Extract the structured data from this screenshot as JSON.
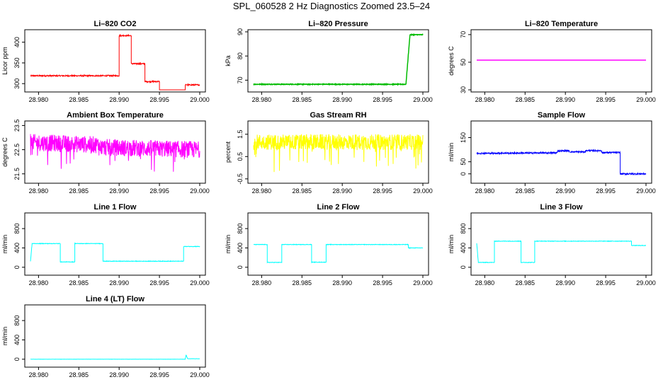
{
  "figure": {
    "title": "SPL_060528  2 Hz Diagnostics Zoomed 23.5–24"
  },
  "chart_data": [
    {
      "type": "line",
      "title": "Li–820 CO2",
      "ylabel": "Licor ppm",
      "color": "#ff0000",
      "xlim": [
        28.979,
        29.0
      ],
      "ylim": [
        285,
        425
      ],
      "xticks": [
        "28.980",
        "28.985",
        "28.990",
        "28.995",
        "29.000"
      ],
      "yticks": [
        "300",
        "350",
        "400"
      ],
      "noise": 1.5,
      "segments": [
        {
          "x": [
            28.979,
            28.99
          ],
          "y": [
            319,
            319
          ]
        },
        {
          "x": [
            28.99,
            28.9915
          ],
          "y": [
            416,
            416
          ]
        },
        {
          "x": [
            28.9915,
            28.9932
          ],
          "y": [
            348,
            348
          ]
        },
        {
          "x": [
            28.9932,
            28.995
          ],
          "y": [
            305,
            305
          ]
        },
        {
          "x": [
            28.995,
            28.9982
          ],
          "y": [
            283,
            283
          ]
        },
        {
          "x": [
            28.9982,
            29.0
          ],
          "y": [
            297,
            297
          ]
        }
      ]
    },
    {
      "type": "line",
      "title": "Li–820 Pressure",
      "ylabel": "kPa",
      "color": "#00bb00",
      "xlim": [
        28.979,
        29.0
      ],
      "ylim": [
        66,
        90
      ],
      "xticks": [
        "28.980",
        "28.985",
        "28.990",
        "28.995",
        "29.000"
      ],
      "yticks": [
        "70",
        "80",
        "90"
      ],
      "noise": 0.15,
      "segments": [
        {
          "x": [
            28.979,
            28.9979
          ],
          "y": [
            68.3,
            68.3
          ]
        },
        {
          "x": [
            28.9979,
            28.9984
          ],
          "y": [
            68.3,
            88.8
          ]
        },
        {
          "x": [
            28.9984,
            29.0
          ],
          "y": [
            88.8,
            88.8
          ]
        }
      ]
    },
    {
      "type": "line",
      "title": "Li–820 Temperature",
      "ylabel": "degrees C",
      "color": "#ff00ff",
      "xlim": [
        28.979,
        29.0
      ],
      "ylim": [
        30,
        72
      ],
      "xticks": [
        "28.980",
        "28.985",
        "28.990",
        "28.995",
        "29.000"
      ],
      "yticks": [
        "30",
        "50",
        "70"
      ],
      "noise": 0,
      "segments": [
        {
          "x": [
            28.979,
            29.0
          ],
          "y": [
            51.5,
            51.5
          ]
        }
      ]
    },
    {
      "type": "line",
      "title": "Ambient Box Temperature",
      "ylabel": "degrees C",
      "color": "#ff00ff",
      "xlim": [
        28.979,
        29.0
      ],
      "ylim": [
        21.2,
        23.6
      ],
      "xticks": [
        "28.980",
        "28.985",
        "28.990",
        "28.995",
        "29.000"
      ],
      "yticks": [
        "21.5",
        "22.5",
        "23.5"
      ],
      "noise": 0.35,
      "spikes": 0.05,
      "segments": [
        {
          "x": [
            28.979,
            28.9875
          ],
          "y": [
            22.8,
            22.7
          ]
        },
        {
          "x": [
            28.9875,
            29.0
          ],
          "y": [
            22.6,
            22.5
          ]
        }
      ]
    },
    {
      "type": "line",
      "title": "Gas Stream RH",
      "ylabel": "percent",
      "color": "#ffff00",
      "xlim": [
        28.979,
        29.0
      ],
      "ylim": [
        -0.6,
        2.0
      ],
      "xticks": [
        "28.980",
        "28.985",
        "28.990",
        "28.995",
        "29.000"
      ],
      "yticks": [
        "-0.5",
        "0.5",
        "1.5"
      ],
      "noise": 0.35,
      "spikes": 0.07,
      "segments": [
        {
          "x": [
            28.979,
            29.0
          ],
          "y": [
            1.15,
            1.15
          ]
        }
      ]
    },
    {
      "type": "line",
      "title": "Sample Flow",
      "ylabel": "ml/min",
      "color": "#0000ff",
      "xlim": [
        28.979,
        29.0
      ],
      "ylim": [
        -30,
        210
      ],
      "xticks": [
        "28.980",
        "28.985",
        "28.990",
        "28.995",
        "29.000"
      ],
      "yticks": [
        "0",
        "50",
        "150"
      ],
      "noise": 3,
      "segments": [
        {
          "x": [
            28.979,
            28.989
          ],
          "y": [
            85,
            87
          ]
        },
        {
          "x": [
            28.989,
            28.9905
          ],
          "y": [
            95,
            95
          ]
        },
        {
          "x": [
            28.9905,
            28.9925
          ],
          "y": [
            91,
            91
          ]
        },
        {
          "x": [
            28.9925,
            28.9945
          ],
          "y": [
            96,
            96
          ]
        },
        {
          "x": [
            28.9945,
            28.9968
          ],
          "y": [
            88,
            88
          ]
        },
        {
          "x": [
            28.9968,
            29.0
          ],
          "y": [
            0,
            0
          ]
        }
      ]
    },
    {
      "type": "line",
      "title": "Line 1 Flow",
      "ylabel": "ml/min",
      "color": "#00ffff",
      "xlim": [
        28.979,
        29.0
      ],
      "ylim": [
        -120,
        1080
      ],
      "xticks": [
        "28.980",
        "28.985",
        "28.990",
        "28.995",
        "29.000"
      ],
      "yticks": [
        "0",
        "400",
        "800"
      ],
      "noise": 5,
      "segments": [
        {
          "x": [
            28.979,
            28.9792
          ],
          "y": [
            120,
            490
          ]
        },
        {
          "x": [
            28.9792,
            28.9827
          ],
          "y": [
            490,
            490
          ]
        },
        {
          "x": [
            28.9827,
            28.9845
          ],
          "y": [
            110,
            110
          ]
        },
        {
          "x": [
            28.9845,
            28.988
          ],
          "y": [
            490,
            490
          ]
        },
        {
          "x": [
            28.988,
            28.998
          ],
          "y": [
            125,
            125
          ]
        },
        {
          "x": [
            28.998,
            29.0
          ],
          "y": [
            430,
            430
          ]
        }
      ]
    },
    {
      "type": "line",
      "title": "Line 2 Flow",
      "ylabel": "ml/min",
      "color": "#00ffff",
      "xlim": [
        28.979,
        29.0
      ],
      "ylim": [
        -120,
        1080
      ],
      "xticks": [
        "28.980",
        "28.985",
        "28.990",
        "28.995",
        "29.000"
      ],
      "yticks": [
        "0",
        "400",
        "800"
      ],
      "noise": 5,
      "segments": [
        {
          "x": [
            28.979,
            28.9807
          ],
          "y": [
            470,
            470
          ]
        },
        {
          "x": [
            28.9807,
            28.9825
          ],
          "y": [
            100,
            100
          ]
        },
        {
          "x": [
            28.9825,
            28.9862
          ],
          "y": [
            470,
            470
          ]
        },
        {
          "x": [
            28.9862,
            28.988
          ],
          "y": [
            105,
            105
          ]
        },
        {
          "x": [
            28.988,
            28.9982
          ],
          "y": [
            470,
            470
          ]
        },
        {
          "x": [
            28.9982,
            29.0
          ],
          "y": [
            400,
            400
          ]
        }
      ]
    },
    {
      "type": "line",
      "title": "Line 3 Flow",
      "ylabel": "ml/min",
      "color": "#00ffff",
      "xlim": [
        28.979,
        29.0
      ],
      "ylim": [
        -120,
        1080
      ],
      "xticks": [
        "28.980",
        "28.985",
        "28.990",
        "28.995",
        "29.000"
      ],
      "yticks": [
        "0",
        "400",
        "800"
      ],
      "noise": 5,
      "segments": [
        {
          "x": [
            28.979,
            28.9792
          ],
          "y": [
            500,
            100
          ]
        },
        {
          "x": [
            28.9792,
            28.9812
          ],
          "y": [
            100,
            100
          ]
        },
        {
          "x": [
            28.9812,
            28.9845
          ],
          "y": [
            540,
            540
          ]
        },
        {
          "x": [
            28.9845,
            28.9862
          ],
          "y": [
            100,
            100
          ]
        },
        {
          "x": [
            28.9862,
            28.9982
          ],
          "y": [
            540,
            540
          ]
        },
        {
          "x": [
            28.9982,
            29.0
          ],
          "y": [
            450,
            450
          ]
        }
      ]
    },
    {
      "type": "line",
      "title": "Line 4 (LT) Flow",
      "ylabel": "ml/min",
      "color": "#00ffff",
      "xlim": [
        28.979,
        29.0
      ],
      "ylim": [
        -120,
        1080
      ],
      "xticks": [
        "28.980",
        "28.985",
        "28.990",
        "28.995",
        "29.000"
      ],
      "yticks": [
        "0",
        "400",
        "800"
      ],
      "noise": 2,
      "segments": [
        {
          "x": [
            28.979,
            28.9982
          ],
          "y": [
            0,
            0
          ]
        },
        {
          "x": [
            28.9982,
            28.9983
          ],
          "y": [
            0,
            90
          ]
        },
        {
          "x": [
            28.9983,
            28.9985
          ],
          "y": [
            90,
            10
          ]
        },
        {
          "x": [
            28.9985,
            29.0
          ],
          "y": [
            10,
            10
          ]
        }
      ]
    }
  ]
}
